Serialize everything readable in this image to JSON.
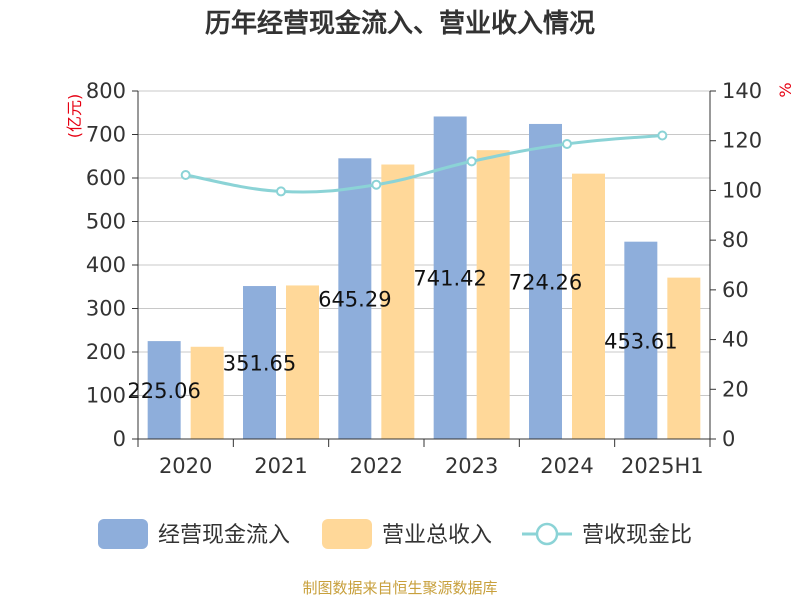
{
  "chart_data": {
    "type": "bar",
    "title": "历年经营现金流入、营业收入情况",
    "categories": [
      "2020",
      "2021",
      "2022",
      "2023",
      "2024",
      "2025H1"
    ],
    "series": [
      {
        "name": "经营现金流入",
        "type": "bar",
        "axis": "left",
        "color": "#8eaedb",
        "values": [
          225.06,
          351.65,
          645.29,
          741.42,
          724.26,
          453.61
        ],
        "labels": [
          "225.06",
          "351.65",
          "645.29",
          "741.42",
          "724.26",
          "453.61"
        ]
      },
      {
        "name": "营业总收入",
        "type": "bar",
        "axis": "left",
        "color": "#ffd899",
        "values": [
          212,
          353,
          631,
          664,
          610,
          371
        ]
      },
      {
        "name": "营收现金比",
        "type": "line",
        "axis": "right",
        "color": "#8bd3d6",
        "values": [
          106.2,
          99.6,
          102.3,
          111.7,
          118.7,
          122.1
        ]
      }
    ],
    "y_left": {
      "unit": "(亿元)",
      "ylim": [
        0,
        800
      ],
      "ticks": [
        0,
        100,
        200,
        300,
        400,
        500,
        600,
        700,
        800
      ]
    },
    "y_right": {
      "unit": "%",
      "ylim": [
        0,
        140
      ],
      "ticks": [
        0,
        20,
        40,
        60,
        80,
        100,
        120,
        140
      ]
    },
    "grid": true,
    "legend_position": "bottom"
  },
  "source": "制图数据来自恒生聚源数据库"
}
